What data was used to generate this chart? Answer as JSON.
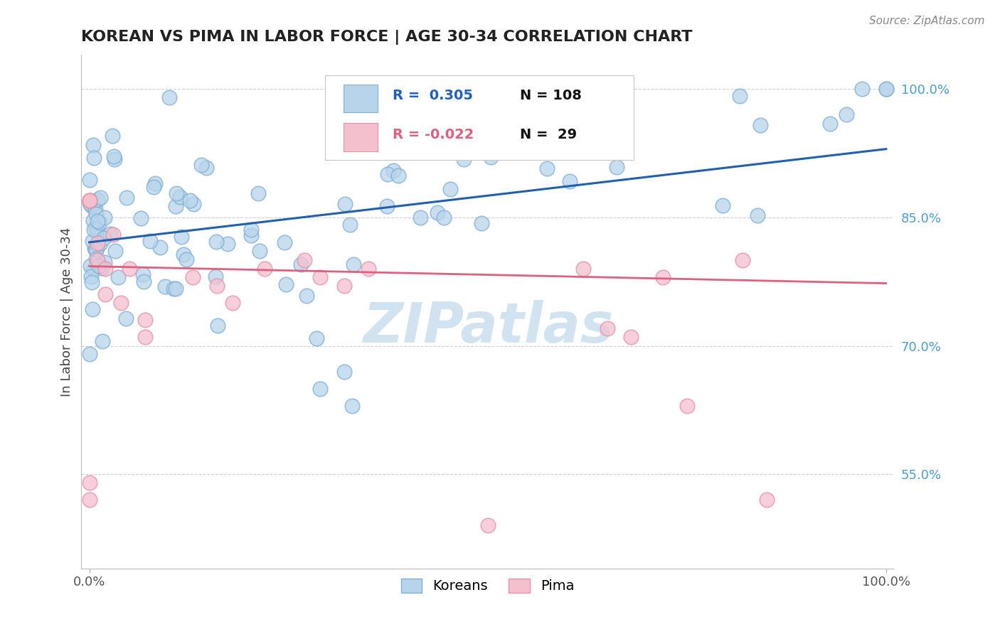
{
  "title": "KOREAN VS PIMA IN LABOR FORCE | AGE 30-34 CORRELATION CHART",
  "source_text": "Source: ZipAtlas.com",
  "ylabel": "In Labor Force | Age 30-34",
  "xlim": [
    -0.01,
    1.01
  ],
  "ylim": [
    0.44,
    1.04
  ],
  "right_ytick_labels": [
    "55.0%",
    "70.0%",
    "85.0%",
    "100.0%"
  ],
  "right_ytick_values": [
    0.55,
    0.7,
    0.85,
    1.0
  ],
  "korean_R": 0.305,
  "korean_N": 108,
  "pima_R": -0.022,
  "pima_N": 29,
  "korean_color": "#b8d4ea",
  "korean_edge_color": "#80b0d8",
  "pima_color": "#f5c0ce",
  "pima_edge_color": "#e890a8",
  "korean_line_color": "#2060b0",
  "pima_line_color": "#e06080",
  "watermark_color": "#cce0f0",
  "background_color": "#ffffff",
  "grid_color": "#d0d0d0",
  "title_color": "#222222",
  "source_color": "#888888",
  "legend_R_korean_color": "#2060c0",
  "legend_R_pima_color": "#e06080",
  "legend_N_color": "#111111",
  "korean_line_start_y": 0.821,
  "korean_line_end_y": 0.93,
  "pima_line_start_y": 0.793,
  "pima_line_end_y": 0.773
}
